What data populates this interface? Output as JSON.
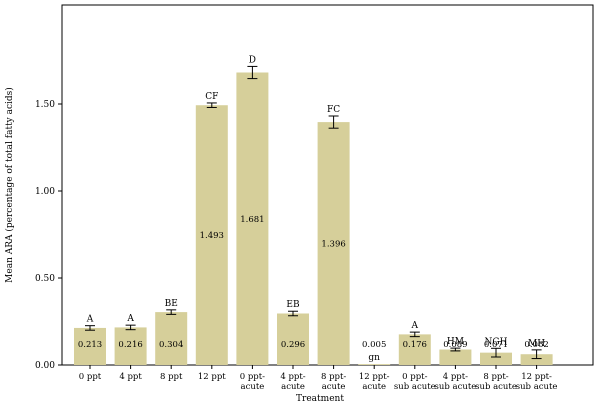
{
  "chart_data": {
    "type": "bar",
    "xlabel": "Treatment",
    "ylabel": "Mean ARA (percentage of total fatty acids)",
    "ylim": [
      0,
      1.9
    ],
    "yticks": [
      0.0,
      0.5,
      1.0,
      1.5
    ],
    "ytick_labels": [
      "0.00",
      "0.50",
      "1.00",
      "1.50"
    ],
    "grid": false,
    "bar_color": "#d6cf9a",
    "categories": [
      [
        "0 ppt"
      ],
      [
        "4 ppt"
      ],
      [
        "8 ppt"
      ],
      [
        "12 ppt"
      ],
      [
        "0 ppt-",
        "acute"
      ],
      [
        "4 ppt-",
        "acute"
      ],
      [
        "8 ppt-",
        "acute"
      ],
      [
        "12 ppt-",
        "acute"
      ],
      [
        "0 ppt-",
        "sub acute"
      ],
      [
        "4 ppt-",
        "sub acute"
      ],
      [
        "8 ppt-",
        "sub acute"
      ],
      [
        "12 ppt-",
        "sub acute"
      ]
    ],
    "values": [
      0.213,
      0.216,
      0.304,
      1.493,
      1.681,
      0.296,
      1.396,
      0.005,
      0.176,
      0.089,
      0.071,
      0.062
    ],
    "value_labels": [
      "0.213",
      "0.216",
      "0.304",
      "1.493",
      "1.681",
      "0.296",
      "1.396",
      "0.005",
      "0.176",
      "0.089",
      "0.071",
      "0.062"
    ],
    "errors": [
      0.013,
      0.013,
      0.013,
      0.013,
      0.035,
      0.013,
      0.035,
      0,
      0.013,
      0.008,
      0.025,
      0.025
    ],
    "significance_letters": [
      "A",
      "A",
      "BE",
      "CF",
      "D",
      "EB",
      "FC",
      "gn",
      "A",
      "HM",
      "NGH",
      "MH"
    ]
  }
}
